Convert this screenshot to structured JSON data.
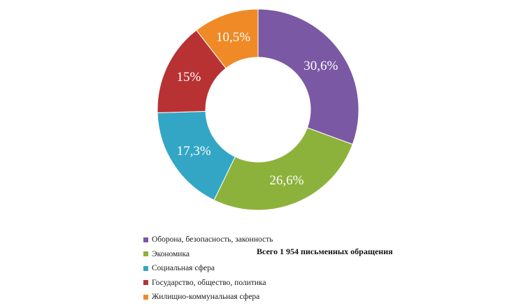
{
  "chart_data": {
    "type": "pie",
    "donut": true,
    "categories": [
      "Оборона, безопасность, законность",
      "Экономика",
      "Социальная сфера",
      "Государство, общество, политика",
      "Жилищно-коммунальная сфера"
    ],
    "values": [
      30.6,
      26.6,
      17.3,
      15,
      10.5
    ],
    "value_labels": [
      "30,6%",
      "26,6%",
      "17,3%",
      "15%",
      "10,5%"
    ],
    "colors": [
      "#7a58a4",
      "#8db23c",
      "#33a6c6",
      "#b83233",
      "#ef8a26"
    ],
    "start_angle_deg": 0,
    "direction": "clockwise",
    "legend_position": "bottom-left"
  },
  "caption": {
    "total": "Всего 1 954 письменных обращения"
  }
}
